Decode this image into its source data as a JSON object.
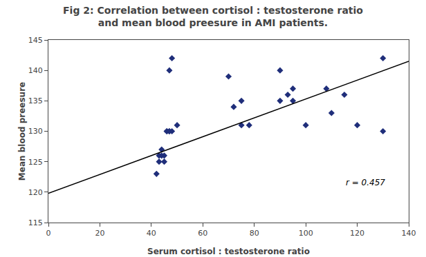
{
  "chart_data": {
    "type": "scatter",
    "title": "Fig 2: Correlation between cortisol : testosterone ratio\nand mean blood preesure in AMI patients.",
    "xlabel": "Serum cortisol : testosterone ratio",
    "ylabel": "Mean blood preesure",
    "xlim": [
      0,
      140
    ],
    "ylim": [
      115,
      145
    ],
    "xticks": [
      0,
      20,
      40,
      60,
      80,
      100,
      120,
      140
    ],
    "yticks": [
      115,
      120,
      125,
      130,
      135,
      140,
      145
    ],
    "grid": false,
    "series": [
      {
        "type": "scatter",
        "marker": "diamond",
        "color": "#1f2e7a",
        "x": [
          42,
          43,
          43,
          44,
          44,
          45,
          45,
          46,
          46,
          47,
          47,
          47,
          48,
          48,
          50,
          70,
          72,
          75,
          75,
          78,
          90,
          90,
          93,
          95,
          95,
          100,
          108,
          110,
          115,
          120,
          130,
          130
        ],
        "values": [
          123,
          125,
          126,
          126,
          127,
          125,
          126,
          130,
          130,
          130,
          130,
          140,
          142,
          130,
          131,
          139,
          134,
          135,
          131,
          131,
          140,
          135,
          136,
          137,
          135,
          131,
          137,
          133,
          136,
          131,
          142,
          130
        ]
      },
      {
        "type": "line",
        "line_style": "solid",
        "color": "#000000",
        "x": [
          0,
          140
        ],
        "values": [
          119.8,
          141.5
        ]
      }
    ],
    "annotations": [
      {
        "text": "r = 0.457",
        "x": 115,
        "y": 120.5
      }
    ]
  }
}
